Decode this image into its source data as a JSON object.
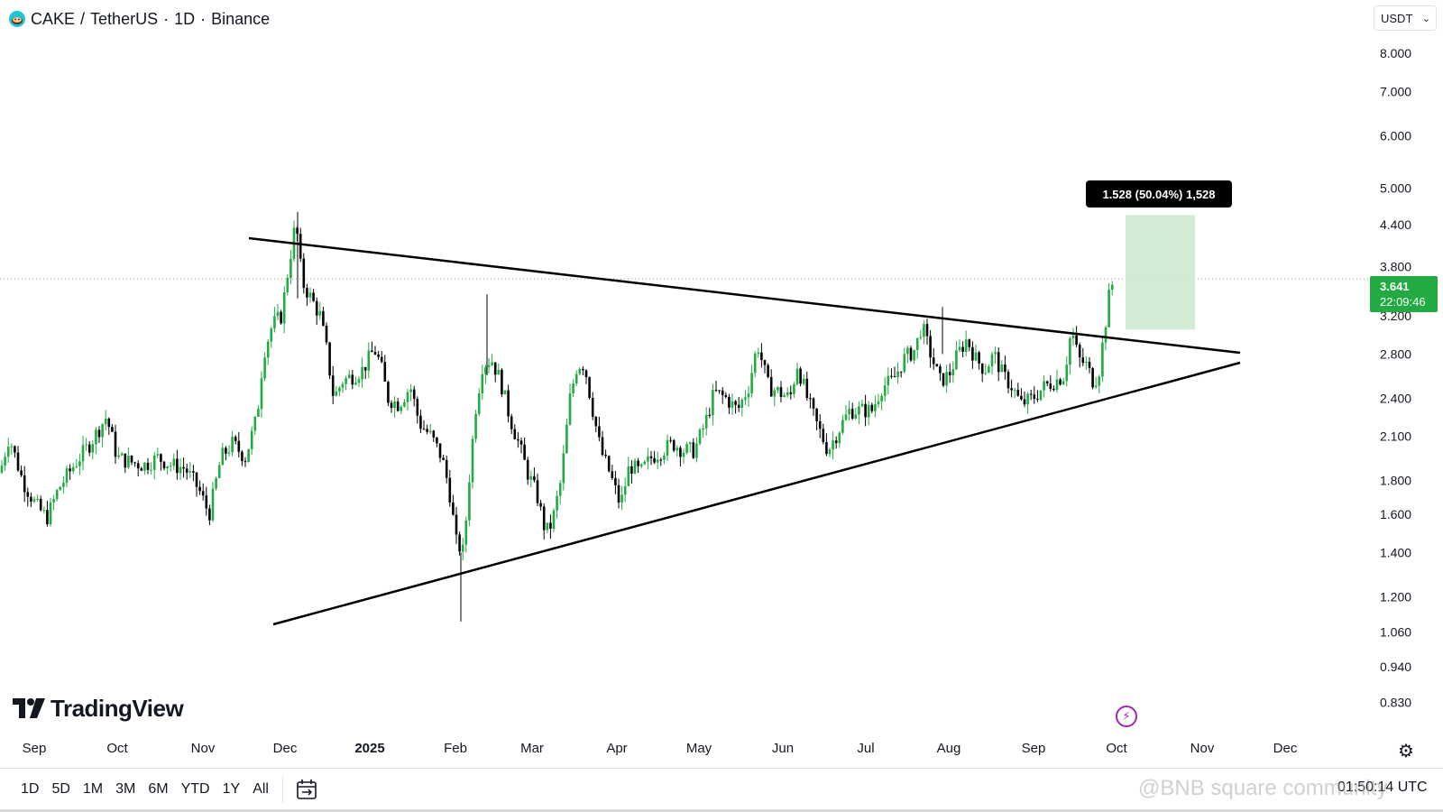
{
  "header": {
    "symbol": "CAKE",
    "separator": "/",
    "pair": "TetherUS",
    "interval": "1D",
    "exchange": "Binance",
    "dot": "·"
  },
  "currency": {
    "label": "USDT"
  },
  "price_tag": {
    "price": "3.641",
    "countdown": "22:09:46"
  },
  "measure": {
    "label": "1.528 (50.04%) 1,528"
  },
  "logo": {
    "text": "TradingView"
  },
  "bottom": {
    "ranges": [
      "1D",
      "5D",
      "1M",
      "3M",
      "6M",
      "YTD",
      "1Y",
      "All"
    ],
    "clock": "01:50:14 UTC",
    "watermark": "@BNB square community"
  },
  "colors": {
    "up": "#22ab42",
    "down": "#000000",
    "measure_fill": "#c8e6c9",
    "trendline": "#000000",
    "alert": "#9c27b0"
  },
  "icons": [
    "cake-coin-icon",
    "chevron-down-icon",
    "lightning-icon",
    "gear-icon",
    "calendar-icon"
  ],
  "chart_data": {
    "type": "candlestick",
    "scale": "log",
    "y_ticks": [
      8.0,
      7.0,
      6.0,
      5.0,
      4.4,
      3.8,
      3.2,
      2.8,
      2.4,
      2.1,
      1.8,
      1.6,
      1.4,
      1.2,
      1.06,
      0.94,
      0.83
    ],
    "y_tick_labels": [
      "8.000",
      "7.000",
      "6.000",
      "5.000",
      "4.400",
      "3.800",
      "3.200",
      "2.800",
      "2.400",
      "2.100",
      "1.800",
      "1.600",
      "1.400",
      "1.200",
      "1.060",
      "0.940",
      "0.830"
    ],
    "ylim": [
      0.8,
      8.5
    ],
    "x_labels": [
      "Sep",
      "Oct",
      "Nov",
      "Dec",
      "2025",
      "Feb",
      "Mar",
      "Apr",
      "May",
      "Jun",
      "Jul",
      "Aug",
      "Sep",
      "Oct",
      "Nov",
      "Dec"
    ],
    "last_price": 3.641,
    "price_path": [
      [
        0,
        1.85
      ],
      [
        10,
        2.1
      ],
      [
        25,
        1.8
      ],
      [
        40,
        1.65
      ],
      [
        52,
        1.58
      ],
      [
        65,
        1.75
      ],
      [
        82,
        1.9
      ],
      [
        100,
        2.05
      ],
      [
        118,
        2.25
      ],
      [
        130,
        1.95
      ],
      [
        145,
        1.92
      ],
      [
        160,
        1.9
      ],
      [
        175,
        1.95
      ],
      [
        190,
        1.9
      ],
      [
        205,
        1.88
      ],
      [
        220,
        1.75
      ],
      [
        232,
        1.6
      ],
      [
        245,
        1.95
      ],
      [
        258,
        2.05
      ],
      [
        272,
        1.95
      ],
      [
        285,
        2.25
      ],
      [
        292,
        2.8
      ],
      [
        302,
        3.1
      ],
      [
        312,
        3.2
      ],
      [
        320,
        3.8
      ],
      [
        328,
        4.45
      ],
      [
        335,
        3.6
      ],
      [
        345,
        3.4
      ],
      [
        355,
        3.2
      ],
      [
        362,
        2.85
      ],
      [
        370,
        2.4
      ],
      [
        380,
        2.55
      ],
      [
        392,
        2.6
      ],
      [
        402,
        2.65
      ],
      [
        415,
        2.85
      ],
      [
        422,
        2.7
      ],
      [
        430,
        2.4
      ],
      [
        442,
        2.35
      ],
      [
        455,
        2.5
      ],
      [
        465,
        2.2
      ],
      [
        478,
        2.1
      ],
      [
        490,
        1.95
      ],
      [
        498,
        1.75
      ],
      [
        506,
        1.45
      ],
      [
        514,
        1.4
      ],
      [
        520,
        1.8
      ],
      [
        527,
        2.3
      ],
      [
        535,
        2.7
      ],
      [
        545,
        2.75
      ],
      [
        555,
        2.55
      ],
      [
        565,
        2.25
      ],
      [
        575,
        2.05
      ],
      [
        585,
        1.85
      ],
      [
        595,
        1.72
      ],
      [
        605,
        1.5
      ],
      [
        612,
        1.55
      ],
      [
        622,
        1.8
      ],
      [
        632,
        2.4
      ],
      [
        640,
        2.7
      ],
      [
        648,
        2.7
      ],
      [
        656,
        2.35
      ],
      [
        666,
        2.0
      ],
      [
        676,
        1.85
      ],
      [
        688,
        1.65
      ],
      [
        698,
        1.9
      ],
      [
        710,
        1.85
      ],
      [
        722,
        1.95
      ],
      [
        734,
        2.0
      ],
      [
        746,
        2.05
      ],
      [
        758,
        2.0
      ],
      [
        770,
        2.0
      ],
      [
        782,
        2.2
      ],
      [
        792,
        2.45
      ],
      [
        805,
        2.4
      ],
      [
        818,
        2.3
      ],
      [
        830,
        2.5
      ],
      [
        840,
        2.9
      ],
      [
        852,
        2.5
      ],
      [
        864,
        2.45
      ],
      [
        876,
        2.4
      ],
      [
        884,
        2.7
      ],
      [
        895,
        2.4
      ],
      [
        905,
        2.2
      ],
      [
        918,
        2.0
      ],
      [
        930,
        2.15
      ],
      [
        942,
        2.3
      ],
      [
        955,
        2.3
      ],
      [
        967,
        2.3
      ],
      [
        978,
        2.5
      ],
      [
        990,
        2.55
      ],
      [
        1002,
        2.75
      ],
      [
        1015,
        2.85
      ],
      [
        1022,
        3.1
      ],
      [
        1030,
        2.85
      ],
      [
        1042,
        2.55
      ],
      [
        1052,
        2.6
      ],
      [
        1062,
        2.8
      ],
      [
        1072,
        2.95
      ],
      [
        1082,
        2.75
      ],
      [
        1092,
        2.65
      ],
      [
        1102,
        2.8
      ],
      [
        1112,
        2.6
      ],
      [
        1122,
        2.5
      ],
      [
        1132,
        2.35
      ],
      [
        1145,
        2.4
      ],
      [
        1158,
        2.5
      ],
      [
        1170,
        2.55
      ],
      [
        1180,
        2.6
      ],
      [
        1188,
        3.05
      ],
      [
        1196,
        2.75
      ],
      [
        1204,
        2.7
      ],
      [
        1212,
        2.55
      ],
      [
        1218,
        2.6
      ],
      [
        1224,
        3.0
      ],
      [
        1230,
        3.45
      ],
      [
        1235,
        3.641
      ]
    ],
    "trendlines": [
      {
        "name": "upper-resistance",
        "start": [
          "Nov",
          4.25
        ],
        "end": [
          "Nov",
          2.9
        ]
      },
      {
        "name": "lower-support",
        "start": [
          "Dec",
          1.07
        ],
        "end": [
          "Nov",
          2.8
        ]
      }
    ],
    "measure_box": {
      "low": 3.05,
      "high": 4.55,
      "change": 1.528,
      "percent": 50.04
    }
  }
}
